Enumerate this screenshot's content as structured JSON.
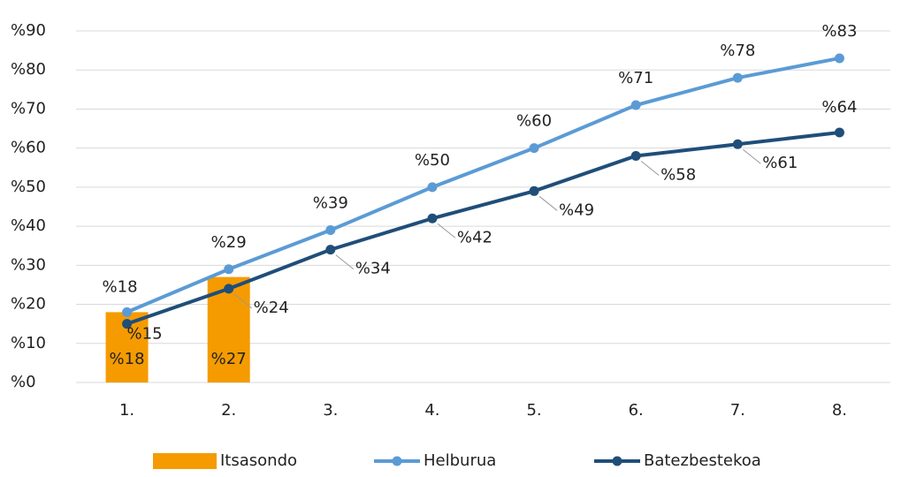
{
  "chart_data": {
    "type": "bar-line",
    "categories": [
      "1.",
      "2.",
      "3.",
      "4.",
      "5.",
      "6.",
      "7.",
      "8."
    ],
    "series": [
      {
        "name": "Itsasondo",
        "type": "bar",
        "color": "#f59b00",
        "values": [
          18,
          27,
          null,
          null,
          null,
          null,
          null,
          null
        ],
        "value_labels": [
          "%18",
          "%27",
          null,
          null,
          null,
          null,
          null,
          null
        ]
      },
      {
        "name": "Helburua",
        "type": "line",
        "color": "#5b9bd5",
        "values": [
          18,
          29,
          39,
          50,
          60,
          71,
          78,
          83
        ],
        "value_labels": [
          "%18",
          "%29",
          "%39",
          "%50",
          "%60",
          "%71",
          "%78",
          "%83"
        ]
      },
      {
        "name": "Batezbestekoa",
        "type": "line",
        "color": "#1f4e79",
        "values": [
          15,
          24,
          34,
          42,
          49,
          58,
          61,
          64
        ],
        "value_labels": [
          "%15",
          "%24",
          "%34",
          "%42",
          "%49",
          "%58",
          "%61",
          "%64"
        ]
      }
    ],
    "ylim": [
      0,
      90
    ],
    "yticks": [
      {
        "value": 0,
        "label": "%0"
      },
      {
        "value": 10,
        "label": "%10"
      },
      {
        "value": 20,
        "label": "%20"
      },
      {
        "value": 30,
        "label": "%30"
      },
      {
        "value": 40,
        "label": "%40"
      },
      {
        "value": 50,
        "label": "%50"
      },
      {
        "value": 60,
        "label": "%60"
      },
      {
        "value": 70,
        "label": "%70"
      },
      {
        "value": 80,
        "label": "%80"
      },
      {
        "value": 90,
        "label": "%90"
      }
    ],
    "grid": true,
    "legend": "bottom"
  }
}
